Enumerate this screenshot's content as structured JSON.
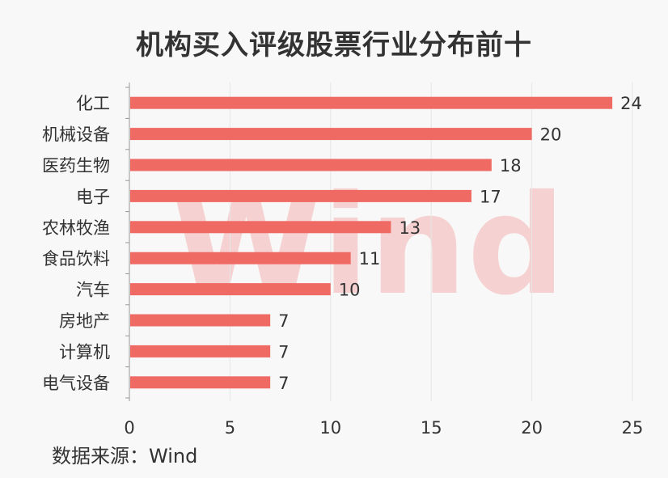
{
  "title": "机构买入评级股票行业分布前十",
  "source": "数据来源：Wind",
  "watermark": "Wind",
  "colors": {
    "bar": "#f06a64",
    "watermark": "#f2b3b1",
    "axis": "#999999",
    "grid": "#e6e6e6",
    "text": "#333333"
  },
  "chart_data": {
    "type": "bar",
    "orientation": "horizontal",
    "categories": [
      "化工",
      "机械设备",
      "医药生物",
      "电子",
      "农林牧渔",
      "食品饮料",
      "汽车",
      "房地产",
      "计算机",
      "电气设备"
    ],
    "values": [
      24,
      20,
      18,
      17,
      13,
      11,
      10,
      7,
      7,
      7
    ],
    "xlim": [
      0,
      25
    ],
    "xticks": [
      0,
      5,
      10,
      15,
      20,
      25
    ],
    "grid": true,
    "data_labels": true
  }
}
